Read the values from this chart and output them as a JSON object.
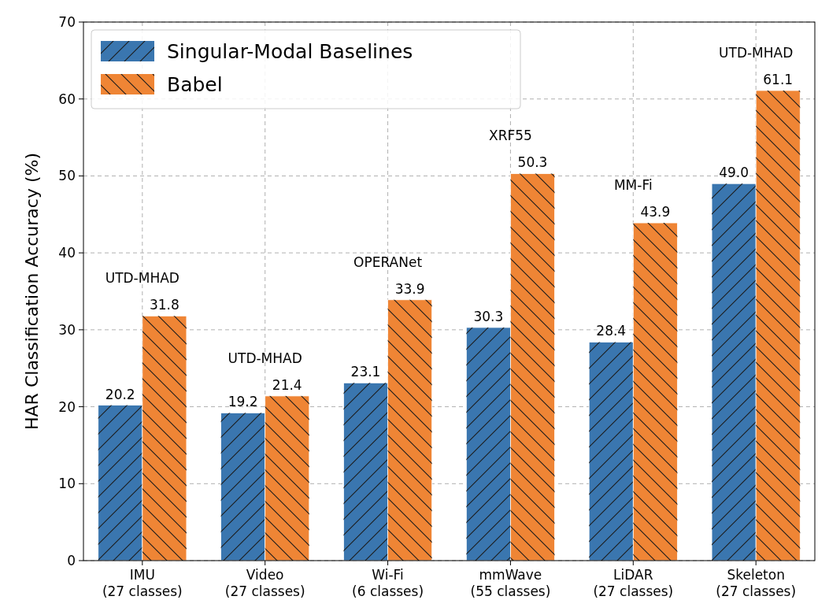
{
  "chart_data": {
    "type": "bar",
    "ylabel": "HAR Classification Accuracy (%)",
    "categories": [
      "IMU\n(27 classes)",
      "Video\n(27 classes)",
      "Wi-Fi\n(6 classes)",
      "mmWave\n(55 classes)",
      "LiDAR\n(27 classes)",
      "Skeleton\n(27 classes)"
    ],
    "series": [
      {
        "name": "Singular-Modal Baselines",
        "color": "#3a76af",
        "values": [
          20.2,
          19.2,
          23.1,
          30.3,
          28.4,
          49.0
        ],
        "value_labels": [
          "20.2",
          "19.2",
          "23.1",
          "30.3",
          "28.4",
          "49.0"
        ]
      },
      {
        "name": "Babel",
        "color": "#ef8535",
        "values": [
          31.8,
          21.4,
          33.9,
          50.3,
          43.9,
          61.1
        ],
        "value_labels": [
          "31.8",
          "21.4",
          "33.9",
          "50.3",
          "43.9",
          "61.1"
        ]
      }
    ],
    "annotations": [
      "UTD-MHAD",
      "UTD-MHAD",
      "OPERANet",
      "XRF55",
      "MM-Fi",
      "UTD-MHAD"
    ],
    "ylim": [
      0,
      70
    ],
    "yticks": [
      0,
      10,
      20,
      30,
      40,
      50,
      60,
      70
    ],
    "grid": true,
    "legend": "top left"
  }
}
